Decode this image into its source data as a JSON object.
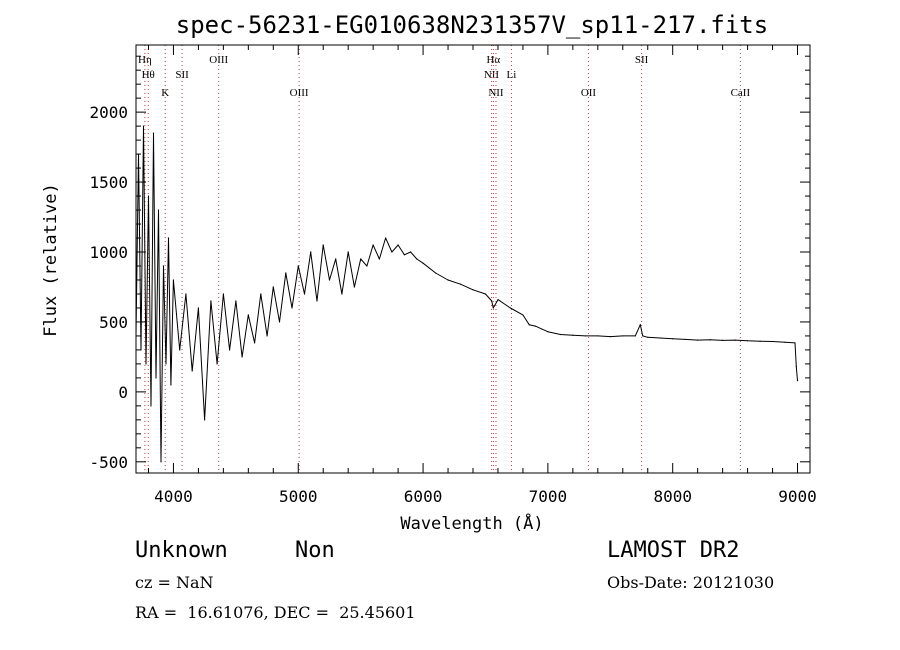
{
  "chart_data": {
    "type": "line",
    "title": "spec-56231-EG010638N231357V_sp11-217.fits",
    "xlabel": "Wavelength (Å)",
    "ylabel": "Flux (relative)",
    "xlim": [
      3700,
      9100
    ],
    "ylim": [
      -580,
      2480
    ],
    "x_ticks": [
      4000,
      5000,
      6000,
      7000,
      8000,
      9000
    ],
    "y_ticks": [
      -500,
      0,
      500,
      1000,
      1500,
      2000
    ],
    "grid": false,
    "series": [
      {
        "x": [
          3700,
          3720,
          3740,
          3760,
          3780,
          3800,
          3820,
          3840,
          3860,
          3880,
          3900,
          3920,
          3940,
          3960,
          3980,
          4000,
          4050,
          4100,
          4150,
          4200,
          4250,
          4300,
          4350,
          4400,
          4450,
          4500,
          4550,
          4600,
          4650,
          4700,
          4750,
          4800,
          4850,
          4900,
          4950,
          5000,
          5050,
          5100,
          5150,
          5200,
          5250,
          5300,
          5350,
          5400,
          5450,
          5500,
          5550,
          5600,
          5650,
          5700,
          5750,
          5800,
          5850,
          5900,
          5950,
          6000,
          6100,
          6200,
          6300,
          6400,
          6500,
          6550,
          6563,
          6600,
          6700,
          6800,
          6850,
          6900,
          6950,
          7000,
          7100,
          7200,
          7300,
          7400,
          7500,
          7600,
          7700,
          7740,
          7760,
          7800,
          7900,
          8000,
          8100,
          8200,
          8300,
          8400,
          8500,
          8600,
          8700,
          8800,
          8900,
          8980,
          8990,
          9000
        ],
        "y": [
          400,
          1700,
          300,
          1900,
          200,
          1400,
          -100,
          1850,
          100,
          1300,
          -500,
          900,
          200,
          1100,
          50,
          800,
          300,
          700,
          150,
          600,
          -200,
          650,
          200,
          700,
          300,
          650,
          250,
          550,
          350,
          700,
          400,
          750,
          500,
          850,
          600,
          900,
          700,
          1000,
          650,
          1050,
          800,
          950,
          700,
          1000,
          750,
          950,
          900,
          1050,
          950,
          1100,
          1000,
          1050,
          980,
          1000,
          950,
          920,
          850,
          800,
          770,
          730,
          700,
          650,
          600,
          660,
          600,
          550,
          480,
          470,
          450,
          430,
          410,
          405,
          400,
          400,
          395,
          400,
          400,
          480,
          400,
          390,
          385,
          380,
          375,
          370,
          372,
          368,
          370,
          365,
          362,
          360,
          355,
          350,
          180,
          80
        ]
      }
    ],
    "lines": [
      {
        "x": 3771,
        "label": "Hη",
        "row": 1
      },
      {
        "x": 3798,
        "label": "Hθ",
        "row": 2
      },
      {
        "x": 3934,
        "label": "K",
        "row": 3
      },
      {
        "x": 4069,
        "label": "SII",
        "row": 2
      },
      {
        "x": 4363,
        "label": "OIII",
        "row": 1
      },
      {
        "x": 5007,
        "label": "OIII",
        "row": 3
      },
      {
        "x": 6548,
        "label": "NII",
        "row": 2
      },
      {
        "x": 6563,
        "label": "Hα",
        "row": 1
      },
      {
        "x": 6584,
        "label": "NII",
        "row": 3
      },
      {
        "x": 6708,
        "label": "Li",
        "row": 2
      },
      {
        "x": 7325,
        "label": "OII",
        "row": 3
      },
      {
        "x": 7751,
        "label": "SII",
        "row": 1
      },
      {
        "x": 8542,
        "label": "CaII",
        "row": 3
      }
    ]
  },
  "info": {
    "class_label": "Unknown",
    "subclass_label": "Non",
    "redshift_line": "cz = NaN",
    "coords_line": "RA =  16.61076, DEC =  25.45601",
    "survey": "LAMOST DR2",
    "obs_date_line": "Obs-Date: 20121030"
  }
}
